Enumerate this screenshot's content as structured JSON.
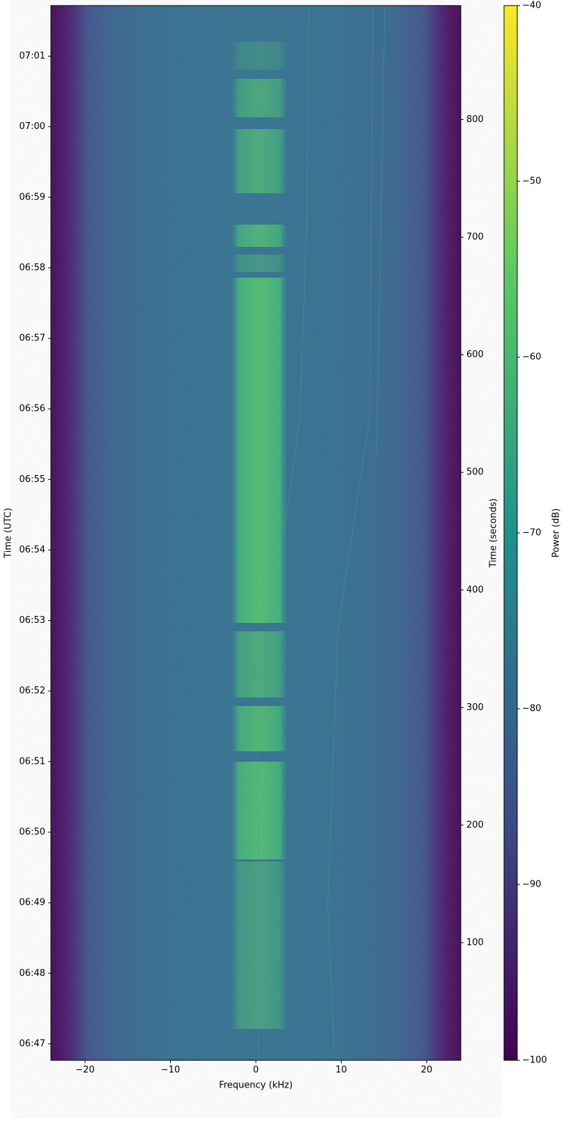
{
  "chart_data": {
    "type": "spectrogram",
    "xlabel": "Frequency (kHz)",
    "ylabel": "Time (UTC)",
    "y2label": "Time (seconds)",
    "colorbar_label": "Power (dB)",
    "xlim": [
      -24,
      24
    ],
    "xticks": [
      {
        "value": -20,
        "label": "−20"
      },
      {
        "value": -10,
        "label": "−10"
      },
      0,
      10,
      20
    ],
    "ylim": [
      0,
      897
    ],
    "yticks": [
      {
        "value": 14,
        "label": "06:47"
      },
      {
        "value": 74,
        "label": "06:48"
      },
      {
        "value": 134,
        "label": "06:49"
      },
      {
        "value": 194,
        "label": "06:50"
      },
      {
        "value": 254,
        "label": "06:51"
      },
      {
        "value": 314,
        "label": "06:52"
      },
      {
        "value": 374,
        "label": "06:53"
      },
      {
        "value": 434,
        "label": "06:54"
      },
      {
        "value": 494,
        "label": "06:55"
      },
      {
        "value": 554,
        "label": "06:56"
      },
      {
        "value": 614,
        "label": "06:57"
      },
      {
        "value": 674,
        "label": "06:58"
      },
      {
        "value": 734,
        "label": "06:59"
      },
      {
        "value": 794,
        "label": "07:00"
      },
      {
        "value": 854,
        "label": "07:01"
      }
    ],
    "y2lim": [
      0,
      897
    ],
    "y2ticks": [
      100,
      200,
      300,
      400,
      500,
      600,
      700,
      800
    ],
    "clim": [
      -100,
      -40
    ],
    "cticks": [
      {
        "value": -100,
        "label": "−100"
      },
      {
        "value": -90,
        "label": "−90"
      },
      {
        "value": -80,
        "label": "−80"
      },
      {
        "value": -70,
        "label": "−70"
      },
      {
        "value": -60,
        "label": "−60"
      },
      {
        "value": -50,
        "label": "−50"
      },
      {
        "value": -40,
        "label": "−40"
      }
    ]
  }
}
